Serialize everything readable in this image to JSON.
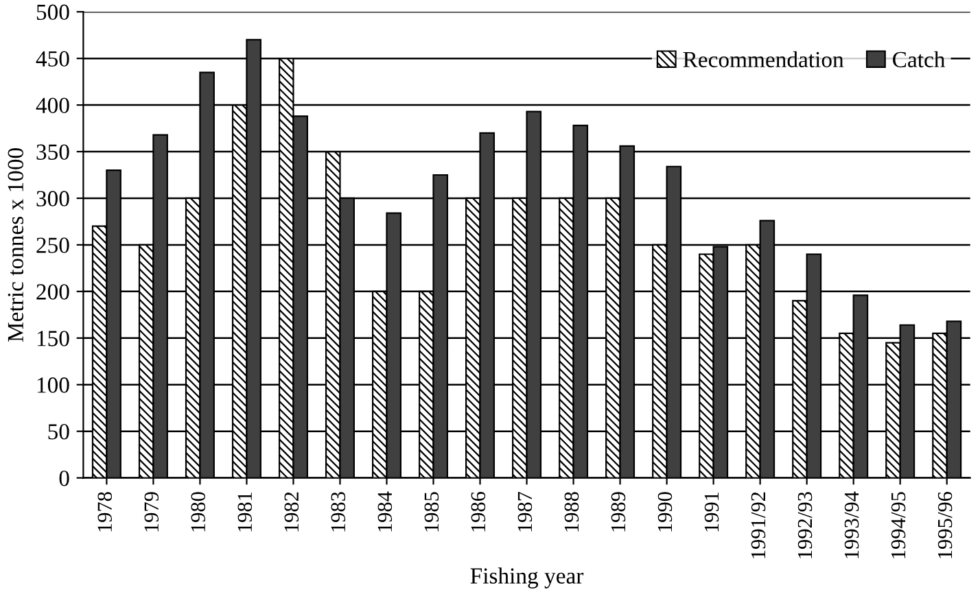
{
  "chart_data": {
    "type": "bar",
    "xlabel": "Fishing year",
    "ylabel": "Metric tonnes x 1000",
    "categories": [
      "1978",
      "1979",
      "1980",
      "1981",
      "1982",
      "1983",
      "1984",
      "1985",
      "1986",
      "1987",
      "1988",
      "1989",
      "1990",
      "1991",
      "1991/92",
      "1992/93",
      "1993/94",
      "1994/95",
      "1995/96"
    ],
    "series": [
      {
        "name": "Recommendation",
        "color": "#000000",
        "values": [
          270,
          250,
          300,
          400,
          450,
          350,
          200,
          200,
          300,
          300,
          300,
          300,
          250,
          240,
          250,
          190,
          155,
          145,
          155
        ]
      },
      {
        "name": "Catch",
        "color": "#404040",
        "values": [
          330,
          368,
          435,
          470,
          388,
          300,
          284,
          325,
          370,
          393,
          378,
          356,
          334,
          248,
          276,
          240,
          196,
          164,
          168
        ]
      }
    ],
    "ylim": [
      0,
      500
    ],
    "yticks": [
      0,
      50,
      100,
      150,
      200,
      250,
      300,
      350,
      400,
      450,
      500
    ],
    "grid": "y",
    "legend": "top right"
  }
}
